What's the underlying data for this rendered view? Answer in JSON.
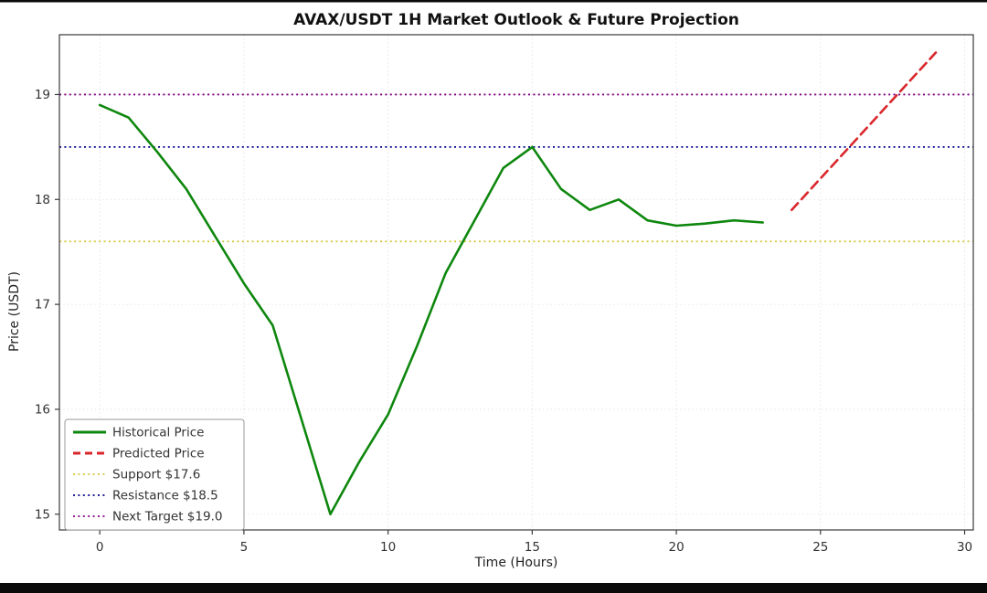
{
  "figure": {
    "title": "AVAX/USDT 1H Market Outlook & Future Projection",
    "xlabel": "Time (Hours)",
    "ylabel": "Price (USDT)"
  },
  "chart_data": {
    "type": "line",
    "title": "AVAX/USDT 1H Market Outlook & Future Projection",
    "xlabel": "Time (Hours)",
    "ylabel": "Price (USDT)",
    "xlim": [
      -1.4,
      30.3
    ],
    "ylim": [
      14.85,
      19.57
    ],
    "xticks": [
      0,
      5,
      10,
      15,
      20,
      25,
      30
    ],
    "yticks": [
      15,
      16,
      17,
      18,
      19
    ],
    "grid": true,
    "series": [
      {
        "name": "Historical Price",
        "color": "#0e870e",
        "style": "solid",
        "width": 2.6,
        "x": [
          0,
          1,
          2,
          3,
          4,
          5,
          6,
          7,
          8,
          9,
          10,
          11,
          12,
          13,
          14,
          15,
          16,
          17,
          18,
          19,
          20,
          21,
          22,
          23
        ],
        "y": [
          18.9,
          18.78,
          18.45,
          18.1,
          17.65,
          17.2,
          16.8,
          15.9,
          15.0,
          15.5,
          15.95,
          16.6,
          17.3,
          17.8,
          18.3,
          18.5,
          18.1,
          17.9,
          18.0,
          17.8,
          17.75,
          17.77,
          17.8,
          17.78
        ]
      },
      {
        "name": "Predicted Price",
        "color": "#d9262c",
        "style": "dashed",
        "width": 2.6,
        "x": [
          24,
          25,
          26,
          27,
          28,
          29
        ],
        "y": [
          17.9,
          18.2,
          18.5,
          18.8,
          19.1,
          19.4
        ]
      }
    ],
    "hlines": [
      {
        "name": "Support $17.6",
        "y": 17.6,
        "color": "#d2c53a",
        "style": "dotted",
        "width": 1.8
      },
      {
        "name": "Resistance $18.5",
        "y": 18.5,
        "color": "#00008b",
        "style": "dotted",
        "width": 1.8
      },
      {
        "name": "Next Target $19.0",
        "y": 19.0,
        "color": "#800080",
        "style": "dotted",
        "width": 1.8
      }
    ],
    "legend": {
      "position": "lower left",
      "entries": [
        "Historical Price",
        "Predicted Price",
        "Support $17.6",
        "Resistance $18.5",
        "Next Target $19.0"
      ]
    }
  }
}
